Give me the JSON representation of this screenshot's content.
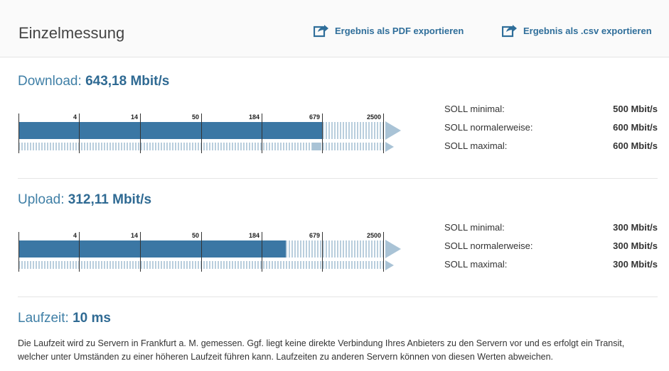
{
  "header": {
    "title": "Einzelmessung",
    "export_pdf_label": "Ergebnis als PDF exportieren",
    "export_csv_label": "Ergebnis als .csv exportieren"
  },
  "scale_ticks": [
    "4",
    "14",
    "50",
    "184",
    "679",
    "2500"
  ],
  "download": {
    "label": "Download:",
    "value": "643,18 Mbit/s",
    "measured_fraction": 0.828,
    "secondary_fraction": 0.8,
    "soll": [
      {
        "label": "SOLL minimal:",
        "value": "500 Mbit/s"
      },
      {
        "label": "SOLL normalerweise:",
        "value": "600 Mbit/s"
      },
      {
        "label": "SOLL maximal:",
        "value": "600 Mbit/s"
      }
    ]
  },
  "upload": {
    "label": "Upload:",
    "value": "312,11 Mbit/s",
    "measured_fraction": 0.728,
    "secondary_fraction": 0.0,
    "soll": [
      {
        "label": "SOLL minimal:",
        "value": "300 Mbit/s"
      },
      {
        "label": "SOLL normalerweise:",
        "value": "300 Mbit/s"
      },
      {
        "label": "SOLL maximal:",
        "value": "300 Mbit/s"
      }
    ]
  },
  "latency": {
    "label": "Laufzeit:",
    "value": "10 ms",
    "note": "Die Laufzeit wird zu Servern in Frankfurt a. M. gemessen. Ggf. liegt keine direkte Verbindung Ihres Anbieters zu den Servern vor und es erfolgt ein Transit, welcher unter Umständen zu einer höheren Laufzeit führen kann. Laufzeiten zu anderen Servern können von diesen Werten abweichen."
  },
  "colors": {
    "accent": "#3b77a4",
    "light_accent": "#a9c3d6",
    "title_blue": "#3f7fa6"
  }
}
